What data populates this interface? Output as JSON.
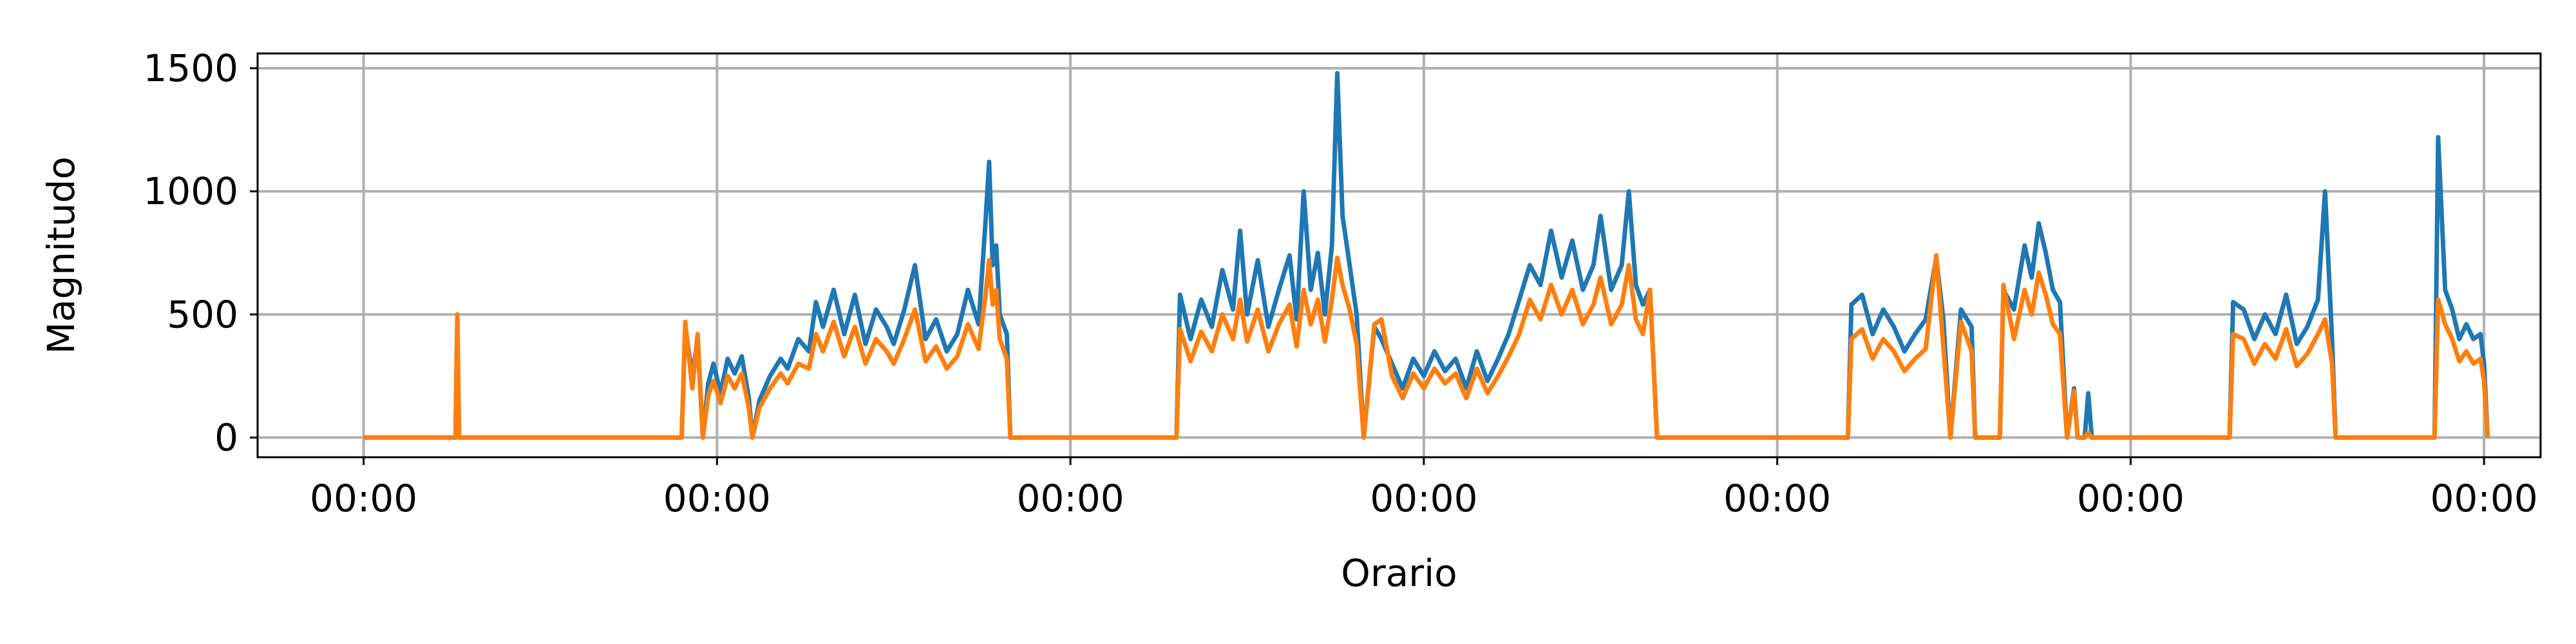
{
  "chart_data": {
    "type": "line",
    "title": "",
    "xlabel": "Orario",
    "ylabel": "Magnitudo",
    "x_tick_labels": [
      "00:00",
      "00:00",
      "00:00",
      "00:00",
      "00:00",
      "00:00",
      "00:00"
    ],
    "x_ticks": [
      0,
      1,
      2,
      3,
      4,
      5,
      6
    ],
    "xlim": [
      -0.3,
      6.16
    ],
    "y_ticks": [
      0,
      500,
      1000,
      1500
    ],
    "ylim": [
      -80,
      1560
    ],
    "grid": true,
    "legend": null,
    "series": [
      {
        "color": "#1f77b4",
        "points": [
          [
            0.0,
            0
          ],
          [
            0.26,
            0
          ],
          [
            0.265,
            480
          ],
          [
            0.27,
            0
          ],
          [
            0.9,
            0
          ],
          [
            0.91,
            450
          ],
          [
            0.93,
            250
          ],
          [
            0.945,
            400
          ],
          [
            0.96,
            0
          ],
          [
            0.975,
            220
          ],
          [
            0.99,
            300
          ],
          [
            1.01,
            180
          ],
          [
            1.03,
            320
          ],
          [
            1.05,
            260
          ],
          [
            1.07,
            330
          ],
          [
            1.09,
            160
          ],
          [
            1.1,
            0
          ],
          [
            1.12,
            150
          ],
          [
            1.15,
            250
          ],
          [
            1.18,
            320
          ],
          [
            1.2,
            280
          ],
          [
            1.23,
            400
          ],
          [
            1.26,
            350
          ],
          [
            1.28,
            550
          ],
          [
            1.3,
            450
          ],
          [
            1.33,
            600
          ],
          [
            1.36,
            420
          ],
          [
            1.39,
            580
          ],
          [
            1.42,
            380
          ],
          [
            1.45,
            520
          ],
          [
            1.48,
            450
          ],
          [
            1.5,
            380
          ],
          [
            1.53,
            520
          ],
          [
            1.56,
            700
          ],
          [
            1.59,
            400
          ],
          [
            1.62,
            480
          ],
          [
            1.65,
            350
          ],
          [
            1.68,
            420
          ],
          [
            1.71,
            600
          ],
          [
            1.74,
            460
          ],
          [
            1.76,
            880
          ],
          [
            1.77,
            1120
          ],
          [
            1.78,
            700
          ],
          [
            1.79,
            780
          ],
          [
            1.8,
            500
          ],
          [
            1.82,
            420
          ],
          [
            1.83,
            0
          ],
          [
            2.3,
            0
          ],
          [
            2.31,
            580
          ],
          [
            2.34,
            400
          ],
          [
            2.37,
            560
          ],
          [
            2.4,
            450
          ],
          [
            2.43,
            680
          ],
          [
            2.46,
            520
          ],
          [
            2.48,
            840
          ],
          [
            2.5,
            500
          ],
          [
            2.53,
            720
          ],
          [
            2.56,
            450
          ],
          [
            2.59,
            600
          ],
          [
            2.62,
            740
          ],
          [
            2.64,
            480
          ],
          [
            2.66,
            1000
          ],
          [
            2.68,
            600
          ],
          [
            2.7,
            750
          ],
          [
            2.72,
            500
          ],
          [
            2.74,
            780
          ],
          [
            2.755,
            1480
          ],
          [
            2.77,
            900
          ],
          [
            2.79,
            700
          ],
          [
            2.81,
            500
          ],
          [
            2.83,
            0
          ],
          [
            2.86,
            450
          ],
          [
            2.88,
            400
          ],
          [
            2.91,
            300
          ],
          [
            2.94,
            200
          ],
          [
            2.97,
            320
          ],
          [
            3.0,
            250
          ],
          [
            3.03,
            350
          ],
          [
            3.06,
            270
          ],
          [
            3.09,
            320
          ],
          [
            3.12,
            200
          ],
          [
            3.15,
            350
          ],
          [
            3.18,
            230
          ],
          [
            3.21,
            320
          ],
          [
            3.24,
            420
          ],
          [
            3.27,
            560
          ],
          [
            3.3,
            700
          ],
          [
            3.33,
            620
          ],
          [
            3.36,
            840
          ],
          [
            3.39,
            650
          ],
          [
            3.42,
            800
          ],
          [
            3.45,
            600
          ],
          [
            3.48,
            700
          ],
          [
            3.5,
            900
          ],
          [
            3.53,
            600
          ],
          [
            3.56,
            700
          ],
          [
            3.58,
            1000
          ],
          [
            3.6,
            620
          ],
          [
            3.62,
            540
          ],
          [
            3.64,
            600
          ],
          [
            3.66,
            0
          ],
          [
            4.2,
            0
          ],
          [
            4.21,
            540
          ],
          [
            4.24,
            580
          ],
          [
            4.27,
            420
          ],
          [
            4.3,
            520
          ],
          [
            4.33,
            450
          ],
          [
            4.36,
            350
          ],
          [
            4.39,
            420
          ],
          [
            4.42,
            480
          ],
          [
            4.45,
            730
          ],
          [
            4.47,
            480
          ],
          [
            4.49,
            0
          ],
          [
            4.52,
            520
          ],
          [
            4.55,
            450
          ],
          [
            4.56,
            0
          ],
          [
            4.63,
            0
          ],
          [
            4.64,
            600
          ],
          [
            4.67,
            520
          ],
          [
            4.7,
            780
          ],
          [
            4.72,
            650
          ],
          [
            4.74,
            870
          ],
          [
            4.76,
            750
          ],
          [
            4.78,
            600
          ],
          [
            4.8,
            550
          ],
          [
            4.82,
            0
          ],
          [
            4.84,
            200
          ],
          [
            4.85,
            0
          ],
          [
            4.87,
            0
          ],
          [
            4.88,
            180
          ],
          [
            4.89,
            0
          ],
          [
            5.28,
            0
          ],
          [
            5.29,
            550
          ],
          [
            5.32,
            520
          ],
          [
            5.35,
            400
          ],
          [
            5.38,
            500
          ],
          [
            5.41,
            420
          ],
          [
            5.44,
            580
          ],
          [
            5.47,
            380
          ],
          [
            5.5,
            450
          ],
          [
            5.53,
            560
          ],
          [
            5.55,
            1000
          ],
          [
            5.57,
            400
          ],
          [
            5.58,
            0
          ],
          [
            5.86,
            0
          ],
          [
            5.87,
            1220
          ],
          [
            5.89,
            600
          ],
          [
            5.91,
            520
          ],
          [
            5.93,
            400
          ],
          [
            5.95,
            460
          ],
          [
            5.97,
            400
          ],
          [
            5.99,
            420
          ],
          [
            6.0,
            300
          ],
          [
            6.01,
            0
          ]
        ]
      },
      {
        "color": "#ff7f0e",
        "points": [
          [
            0.0,
            0
          ],
          [
            0.26,
            0
          ],
          [
            0.265,
            500
          ],
          [
            0.27,
            0
          ],
          [
            0.9,
            0
          ],
          [
            0.91,
            470
          ],
          [
            0.93,
            200
          ],
          [
            0.945,
            420
          ],
          [
            0.96,
            0
          ],
          [
            0.975,
            170
          ],
          [
            0.99,
            230
          ],
          [
            1.01,
            140
          ],
          [
            1.03,
            250
          ],
          [
            1.05,
            200
          ],
          [
            1.07,
            260
          ],
          [
            1.09,
            120
          ],
          [
            1.1,
            0
          ],
          [
            1.12,
            120
          ],
          [
            1.15,
            200
          ],
          [
            1.18,
            260
          ],
          [
            1.2,
            220
          ],
          [
            1.23,
            300
          ],
          [
            1.26,
            280
          ],
          [
            1.28,
            420
          ],
          [
            1.3,
            350
          ],
          [
            1.33,
            470
          ],
          [
            1.36,
            330
          ],
          [
            1.39,
            450
          ],
          [
            1.42,
            300
          ],
          [
            1.45,
            400
          ],
          [
            1.48,
            350
          ],
          [
            1.5,
            300
          ],
          [
            1.53,
            400
          ],
          [
            1.56,
            520
          ],
          [
            1.59,
            310
          ],
          [
            1.62,
            370
          ],
          [
            1.65,
            280
          ],
          [
            1.68,
            330
          ],
          [
            1.71,
            460
          ],
          [
            1.74,
            360
          ],
          [
            1.76,
            580
          ],
          [
            1.77,
            720
          ],
          [
            1.78,
            540
          ],
          [
            1.79,
            600
          ],
          [
            1.8,
            400
          ],
          [
            1.82,
            320
          ],
          [
            1.83,
            0
          ],
          [
            2.3,
            0
          ],
          [
            2.31,
            440
          ],
          [
            2.34,
            310
          ],
          [
            2.37,
            430
          ],
          [
            2.4,
            350
          ],
          [
            2.43,
            500
          ],
          [
            2.46,
            400
          ],
          [
            2.48,
            560
          ],
          [
            2.5,
            390
          ],
          [
            2.53,
            520
          ],
          [
            2.56,
            350
          ],
          [
            2.59,
            460
          ],
          [
            2.62,
            540
          ],
          [
            2.64,
            370
          ],
          [
            2.66,
            600
          ],
          [
            2.68,
            460
          ],
          [
            2.7,
            560
          ],
          [
            2.72,
            390
          ],
          [
            2.74,
            560
          ],
          [
            2.755,
            730
          ],
          [
            2.77,
            620
          ],
          [
            2.79,
            520
          ],
          [
            2.81,
            380
          ],
          [
            2.83,
            0
          ],
          [
            2.86,
            460
          ],
          [
            2.88,
            480
          ],
          [
            2.91,
            250
          ],
          [
            2.94,
            160
          ],
          [
            2.97,
            260
          ],
          [
            3.0,
            200
          ],
          [
            3.03,
            280
          ],
          [
            3.06,
            220
          ],
          [
            3.09,
            260
          ],
          [
            3.12,
            160
          ],
          [
            3.15,
            280
          ],
          [
            3.18,
            180
          ],
          [
            3.21,
            250
          ],
          [
            3.24,
            330
          ],
          [
            3.27,
            420
          ],
          [
            3.3,
            560
          ],
          [
            3.33,
            480
          ],
          [
            3.36,
            620
          ],
          [
            3.39,
            500
          ],
          [
            3.42,
            600
          ],
          [
            3.45,
            460
          ],
          [
            3.48,
            540
          ],
          [
            3.5,
            650
          ],
          [
            3.53,
            460
          ],
          [
            3.56,
            540
          ],
          [
            3.58,
            700
          ],
          [
            3.6,
            480
          ],
          [
            3.62,
            420
          ],
          [
            3.64,
            600
          ],
          [
            3.66,
            0
          ],
          [
            4.2,
            0
          ],
          [
            4.21,
            400
          ],
          [
            4.24,
            440
          ],
          [
            4.27,
            320
          ],
          [
            4.3,
            400
          ],
          [
            4.33,
            350
          ],
          [
            4.36,
            270
          ],
          [
            4.39,
            320
          ],
          [
            4.42,
            360
          ],
          [
            4.45,
            740
          ],
          [
            4.47,
            370
          ],
          [
            4.49,
            0
          ],
          [
            4.52,
            470
          ],
          [
            4.55,
            350
          ],
          [
            4.56,
            0
          ],
          [
            4.63,
            0
          ],
          [
            4.64,
            620
          ],
          [
            4.67,
            400
          ],
          [
            4.7,
            600
          ],
          [
            4.72,
            500
          ],
          [
            4.74,
            670
          ],
          [
            4.76,
            580
          ],
          [
            4.78,
            460
          ],
          [
            4.8,
            420
          ],
          [
            4.82,
            0
          ],
          [
            4.84,
            190
          ],
          [
            4.85,
            0
          ],
          [
            4.87,
            0
          ],
          [
            4.88,
            20
          ],
          [
            4.89,
            0
          ],
          [
            5.28,
            0
          ],
          [
            5.29,
            420
          ],
          [
            5.32,
            400
          ],
          [
            5.35,
            300
          ],
          [
            5.38,
            380
          ],
          [
            5.41,
            320
          ],
          [
            5.44,
            440
          ],
          [
            5.47,
            290
          ],
          [
            5.5,
            340
          ],
          [
            5.53,
            420
          ],
          [
            5.55,
            480
          ],
          [
            5.57,
            300
          ],
          [
            5.58,
            0
          ],
          [
            5.86,
            0
          ],
          [
            5.87,
            560
          ],
          [
            5.89,
            460
          ],
          [
            5.91,
            400
          ],
          [
            5.93,
            310
          ],
          [
            5.95,
            350
          ],
          [
            5.97,
            300
          ],
          [
            5.99,
            320
          ],
          [
            6.0,
            230
          ],
          [
            6.01,
            0
          ]
        ]
      }
    ]
  }
}
